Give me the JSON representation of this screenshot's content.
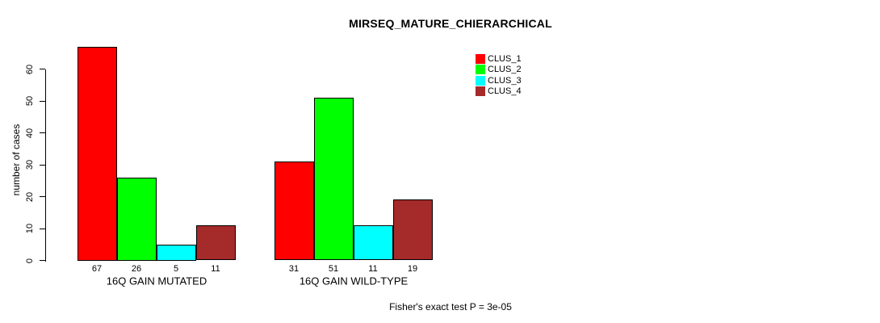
{
  "chart_data": {
    "type": "bar",
    "title": "MIRSEQ_MATURE_CHIERARCHICAL",
    "ylabel": "number of cases",
    "xlabel": "",
    "categories": [
      "16Q GAIN MUTATED",
      "16Q GAIN WILD-TYPE"
    ],
    "series": [
      {
        "name": "CLUS_1",
        "color": "#FF0000",
        "values": [
          67,
          31
        ]
      },
      {
        "name": "CLUS_2",
        "color": "#00FF00",
        "values": [
          26,
          51
        ]
      },
      {
        "name": "CLUS_3",
        "color": "#00FFFF",
        "values": [
          5,
          11
        ]
      },
      {
        "name": "CLUS_4",
        "color": "#A52A2A",
        "values": [
          11,
          19
        ]
      }
    ],
    "yticks": [
      0,
      10,
      20,
      30,
      40,
      50,
      60
    ],
    "ylim": [
      0,
      67
    ],
    "grid": false,
    "legend_position": "top-right",
    "bar_value_labels": true,
    "annotation": "Fisher's exact test P = 3e-05"
  },
  "colors": {
    "background": "#FFFFFF",
    "axis": "#000000",
    "text": "#000000"
  }
}
